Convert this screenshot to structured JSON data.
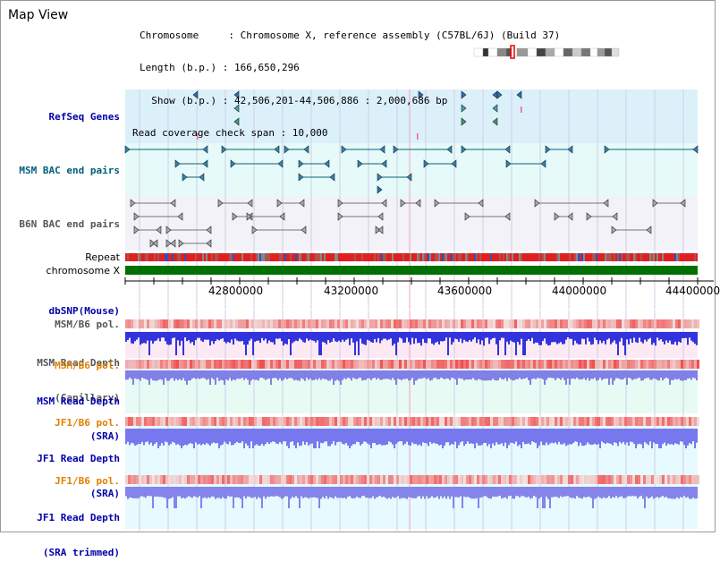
{
  "page": {
    "title": "Map View"
  },
  "info": {
    "chromosome": "Chromosome     : Chromosome X, reference assembly (C57BL/6J) (Build 37)",
    "length": "Length (b.p.) : 166,650,296",
    "show": "  Show (b.p.) : 42,506,201-44,506,886 : 2,000,686 bp",
    "coverage": "Read coverage check span : 10,000"
  },
  "tracks": {
    "refseq": "RefSeq Genes",
    "msm_bac": "MSM BAC end pairs",
    "b6n_bac": "B6N BAC end pairs",
    "repeat": "Repeat",
    "chrom": "chromosome X",
    "dbsnp": "dbSNP(Mouse)",
    "msm_b6_pol": "MSM/B6 pol.",
    "msm_depth_cap_1": "MSM Read Depth",
    "msm_depth_cap_2": "(Capillary)",
    "msm_b6_pol_2": "MSM/B6 pol.",
    "msm_depth_sra_1": "MSM Read Depth",
    "msm_depth_sra_2": "(SRA)",
    "jf1_pol": "JF1/B6 pol.",
    "jf1_depth_1": "JF1 Read Depth",
    "jf1_depth_2": "(SRA)",
    "jf1_pol_2": "JF1/B6 pol.",
    "jf1_trim_1": "JF1 Read Depth",
    "jf1_trim_2": "(SRA trimmed)"
  },
  "axis": {
    "ticks": [
      "42800000",
      "43200000",
      "43600000",
      "44000000",
      "44400000"
    ]
  },
  "colors": {
    "refseq_bg": "#dcf0fa",
    "bac_bg": "#e6fafa",
    "b6n_bg": "#f2f2f8",
    "depth_bg": "#e8faf4",
    "pink_bg": "#fbe9f4",
    "chrom_green": "#007000",
    "blue_label": "#0000aa",
    "teal_label": "#005f7a",
    "orange_label": "#e08000"
  }
}
